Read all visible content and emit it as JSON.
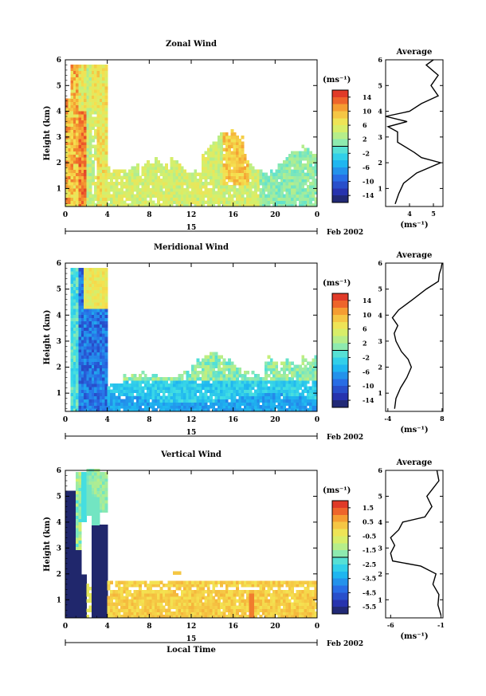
{
  "figure": {
    "date_label": "Feb 2002",
    "day_label": "15",
    "x_axis_title": "Local Time",
    "y_axis_title": "Height (km)",
    "unit_label": "(ms⁻¹)",
    "profile_title": "Average",
    "profile_unit": "(ms⁻¹)"
  },
  "chart_data": [
    {
      "type": "heatmap",
      "title": "Zonal Wind",
      "xlabel": "Local Time",
      "ylabel": "Height (km)",
      "x_ticks": [
        "0",
        "4",
        "8",
        "12",
        "16",
        "20",
        "0"
      ],
      "xlim": [
        0,
        24
      ],
      "ylim": [
        0.3,
        6.0
      ],
      "y_ticks": [
        1,
        2,
        3,
        4,
        5,
        6
      ],
      "colorbar": {
        "ticks": [
          "14",
          "10",
          "6",
          "2",
          "-2",
          "-6",
          "-10",
          "-14"
        ],
        "range": [
          -16,
          16
        ]
      },
      "profile": {
        "title": "Average",
        "xlabel": "(ms⁻¹)",
        "x_ticks": [
          "4",
          "5"
        ],
        "xlim": [
          3.0,
          5.4
        ],
        "heights": [
          0.4,
          0.8,
          1.2,
          1.6,
          2.0,
          2.2,
          2.4,
          2.8,
          3.2,
          3.4,
          3.6,
          3.8,
          4.0,
          4.3,
          4.6,
          5.0,
          5.4,
          5.8,
          6.0
        ],
        "values": [
          3.4,
          3.55,
          3.75,
          4.3,
          5.3,
          4.5,
          4.2,
          3.5,
          3.5,
          3.1,
          3.9,
          3.0,
          4.0,
          4.5,
          5.2,
          4.9,
          5.2,
          4.7,
          5.0
        ]
      }
    },
    {
      "type": "heatmap",
      "title": "Meridional Wind",
      "xlabel": "Local Time",
      "ylabel": "Height (km)",
      "x_ticks": [
        "0",
        "4",
        "8",
        "12",
        "16",
        "20",
        "0"
      ],
      "xlim": [
        0,
        24
      ],
      "ylim": [
        0.3,
        6.0
      ],
      "y_ticks": [
        1,
        2,
        3,
        4,
        5,
        6
      ],
      "colorbar": {
        "ticks": [
          "14",
          "10",
          "6",
          "2",
          "-2",
          "-6",
          "-10",
          "-14"
        ],
        "range": [
          -16,
          16
        ]
      },
      "profile": {
        "title": "Average",
        "xlabel": "(ms⁻¹)",
        "x_ticks": [
          "-4",
          "8"
        ],
        "xlim": [
          -4.5,
          8.2
        ],
        "heights": [
          0.4,
          0.8,
          1.2,
          1.6,
          2.0,
          2.3,
          2.6,
          3.0,
          3.3,
          3.6,
          3.9,
          4.2,
          4.6,
          5.0,
          5.3,
          5.6,
          5.8,
          6.0
        ],
        "values": [
          -2.5,
          -2.2,
          -1.2,
          0.2,
          1.2,
          0.5,
          -1.0,
          -2.2,
          -2.6,
          -1.8,
          -3.0,
          -1.6,
          1.5,
          4.5,
          7.2,
          7.4,
          7.8,
          8.0
        ]
      }
    },
    {
      "type": "heatmap",
      "title": "Vertical Wind",
      "xlabel": "Local Time",
      "ylabel": "Height (km)",
      "x_ticks": [
        "0",
        "4",
        "8",
        "12",
        "16",
        "20",
        "0"
      ],
      "xlim": [
        0,
        24
      ],
      "ylim": [
        0.3,
        6.0
      ],
      "y_ticks": [
        1,
        2,
        3,
        4,
        5,
        6
      ],
      "colorbar": {
        "ticks": [
          "1.5",
          "0.5",
          "-0.5",
          "-1.5",
          "-2.5",
          "-3.5",
          "-4.5",
          "-5.5"
        ],
        "range": [
          -6.0,
          2.0
        ]
      },
      "profile": {
        "title": "Average",
        "xlabel": "(ms⁻¹)",
        "x_ticks": [
          "-6",
          "-1"
        ],
        "xlim": [
          -6.5,
          -0.8
        ],
        "heights": [
          0.4,
          0.8,
          1.2,
          1.6,
          2.0,
          2.3,
          2.5,
          2.8,
          3.1,
          3.4,
          3.7,
          4.0,
          4.2,
          4.6,
          5.0,
          5.3,
          5.6,
          6.0
        ],
        "values": [
          -1.0,
          -1.3,
          -1.2,
          -1.8,
          -1.5,
          -3.0,
          -5.8,
          -6.0,
          -5.6,
          -6.0,
          -5.2,
          -4.8,
          -2.6,
          -1.9,
          -2.4,
          -1.8,
          -1.2,
          -1.4
        ]
      }
    }
  ]
}
